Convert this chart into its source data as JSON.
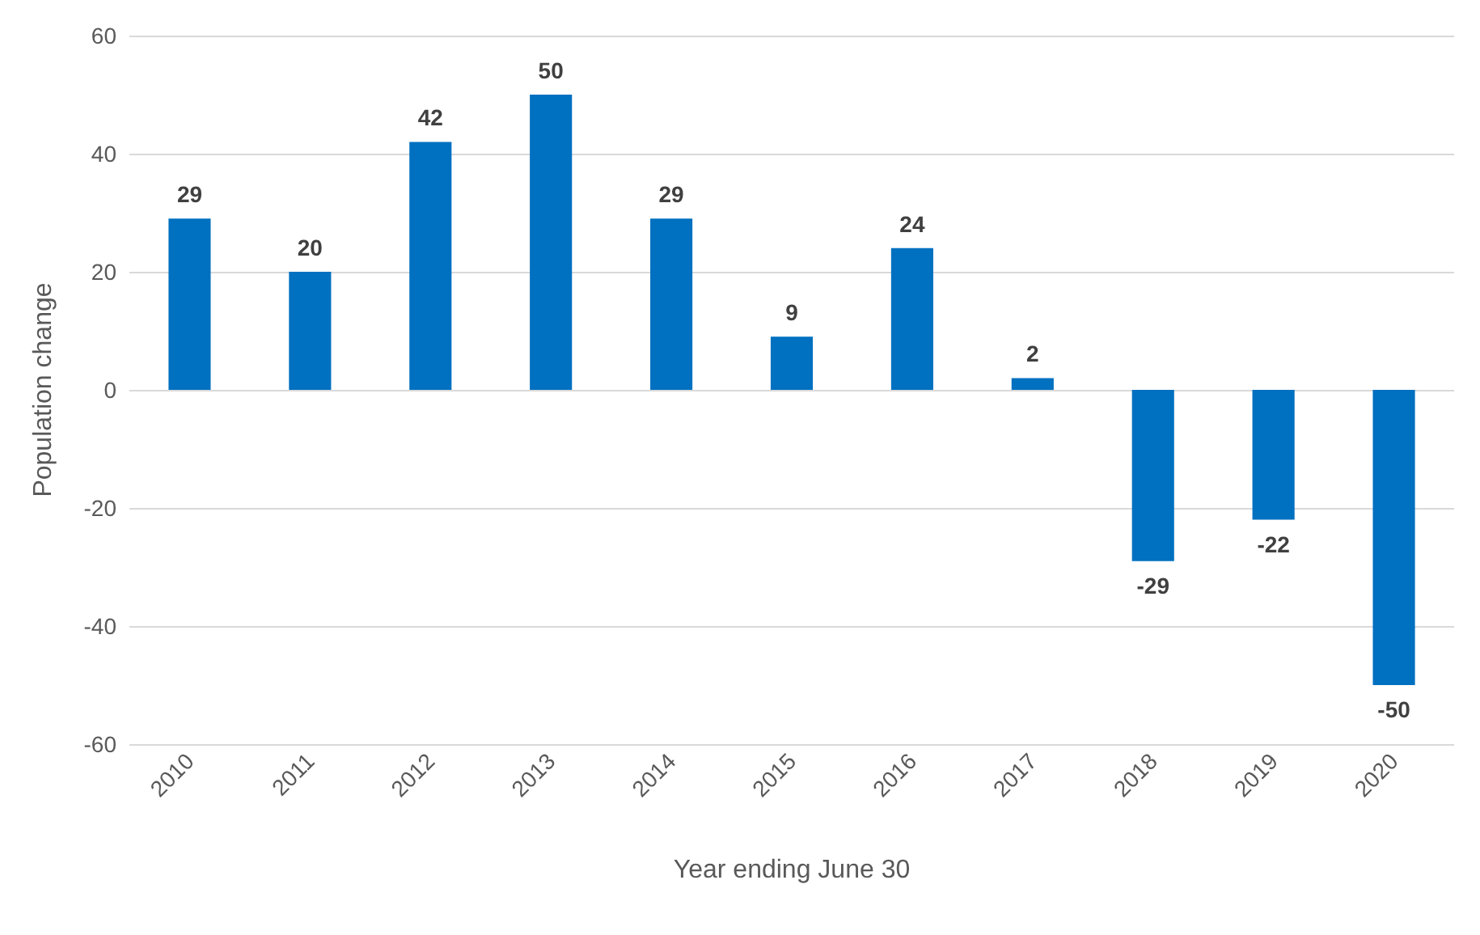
{
  "chart_data": {
    "type": "bar",
    "xlabel": "Year ending June 30",
    "ylabel": "Population change",
    "categories": [
      "2010",
      "2011",
      "2012",
      "2013",
      "2014",
      "2015",
      "2016",
      "2017",
      "2018",
      "2019",
      "2020"
    ],
    "values": [
      29,
      20,
      42,
      50,
      29,
      9,
      24,
      2,
      -29,
      -22,
      -50
    ],
    "color": "#0070c0",
    "ylim": [
      -60,
      60
    ],
    "yticks": [
      -60,
      -40,
      -20,
      0,
      20,
      40,
      60
    ],
    "grid": "y",
    "data_labels": true
  }
}
